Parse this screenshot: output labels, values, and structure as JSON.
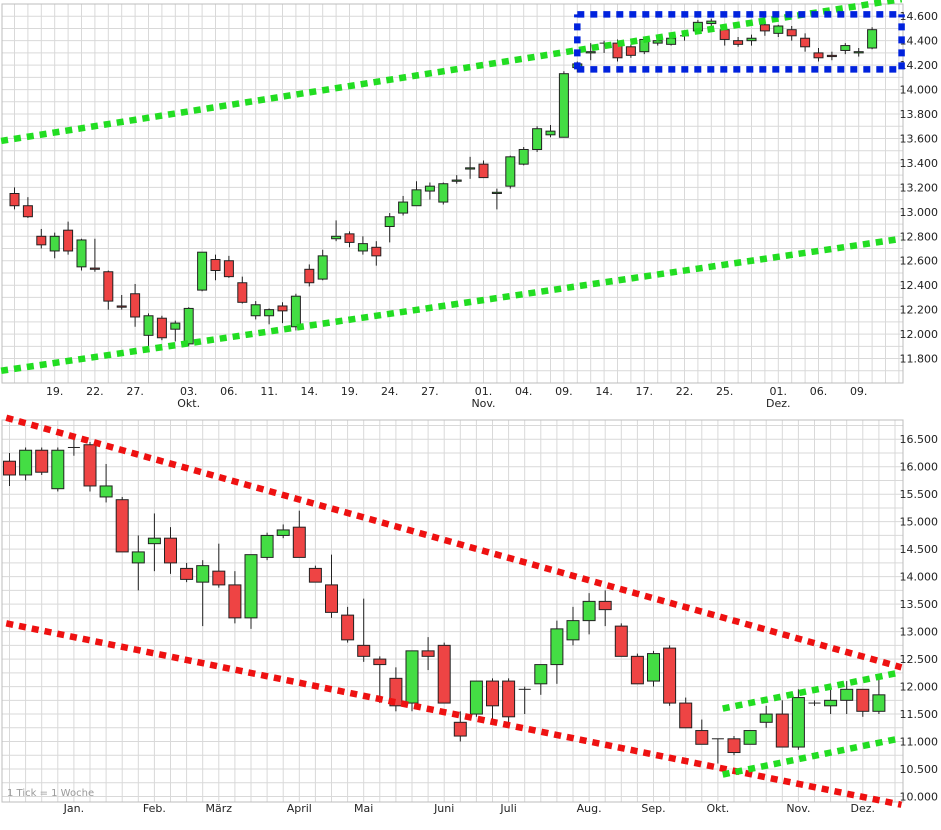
{
  "chart_data": [
    {
      "type": "candlestick",
      "title": "",
      "interval": "daily",
      "ylim": [
        11600,
        14700
      ],
      "y_ticks": [
        11800,
        12000,
        12200,
        12400,
        12600,
        12800,
        13000,
        13200,
        13400,
        13600,
        13800,
        14000,
        14200,
        14400,
        14600
      ],
      "y_tick_labels": [
        "11.800",
        "12.000",
        "12.200",
        "12.400",
        "12.600",
        "12.800",
        "13.000",
        "13.200",
        "13.400",
        "13.600",
        "13.800",
        "14.000",
        "14.200",
        "14.400",
        "14.600"
      ],
      "x_ticks": [
        {
          "i": 3,
          "label": "19."
        },
        {
          "i": 6,
          "label": "22."
        },
        {
          "i": 9,
          "label": "27."
        },
        {
          "i": 13,
          "label": "03.",
          "sub": "Okt."
        },
        {
          "i": 16,
          "label": "06."
        },
        {
          "i": 19,
          "label": "11."
        },
        {
          "i": 22,
          "label": "14."
        },
        {
          "i": 25,
          "label": "19."
        },
        {
          "i": 28,
          "label": "24."
        },
        {
          "i": 31,
          "label": "27."
        },
        {
          "i": 35,
          "label": "01.",
          "sub": "Nov."
        },
        {
          "i": 38,
          "label": "04."
        },
        {
          "i": 41,
          "label": "09."
        },
        {
          "i": 44,
          "label": "14."
        },
        {
          "i": 47,
          "label": "17."
        },
        {
          "i": 50,
          "label": "22."
        },
        {
          "i": 53,
          "label": "25."
        },
        {
          "i": 57,
          "label": "01.",
          "sub": "Dez."
        },
        {
          "i": 60,
          "label": "06."
        },
        {
          "i": 63,
          "label": "09."
        }
      ],
      "candles": [
        {
          "o": 13150,
          "h": 13200,
          "l": 13020,
          "c": 13050
        },
        {
          "o": 13050,
          "h": 13120,
          "l": 12950,
          "c": 12960
        },
        {
          "o": 12800,
          "h": 12860,
          "l": 12700,
          "c": 12730
        },
        {
          "o": 12680,
          "h": 12830,
          "l": 12620,
          "c": 12800
        },
        {
          "o": 12850,
          "h": 12920,
          "l": 12650,
          "c": 12680
        },
        {
          "o": 12550,
          "h": 12780,
          "l": 12520,
          "c": 12770
        },
        {
          "o": 12540,
          "h": 12780,
          "l": 12510,
          "c": 12530
        },
        {
          "o": 12510,
          "h": 12520,
          "l": 12200,
          "c": 12270
        },
        {
          "o": 12230,
          "h": 12320,
          "l": 12200,
          "c": 12220
        },
        {
          "o": 12330,
          "h": 12410,
          "l": 12060,
          "c": 12140
        },
        {
          "o": 11990,
          "h": 12170,
          "l": 11880,
          "c": 12150
        },
        {
          "o": 12130,
          "h": 12150,
          "l": 11950,
          "c": 11970
        },
        {
          "o": 12040,
          "h": 12110,
          "l": 11940,
          "c": 12090
        },
        {
          "o": 11920,
          "h": 12220,
          "l": 11900,
          "c": 12210
        },
        {
          "o": 12360,
          "h": 12670,
          "l": 12350,
          "c": 12670
        },
        {
          "o": 12610,
          "h": 12650,
          "l": 12440,
          "c": 12520
        },
        {
          "o": 12600,
          "h": 12640,
          "l": 12460,
          "c": 12470
        },
        {
          "o": 12420,
          "h": 12470,
          "l": 12250,
          "c": 12260
        },
        {
          "o": 12150,
          "h": 12270,
          "l": 12120,
          "c": 12240
        },
        {
          "o": 12150,
          "h": 12210,
          "l": 12080,
          "c": 12200
        },
        {
          "o": 12230,
          "h": 12260,
          "l": 12090,
          "c": 12190
        },
        {
          "o": 12060,
          "h": 12330,
          "l": 12030,
          "c": 12310
        },
        {
          "o": 12530,
          "h": 12570,
          "l": 12390,
          "c": 12420
        },
        {
          "o": 12450,
          "h": 12690,
          "l": 12440,
          "c": 12640
        },
        {
          "o": 12780,
          "h": 12930,
          "l": 12760,
          "c": 12800
        },
        {
          "o": 12820,
          "h": 12840,
          "l": 12710,
          "c": 12750
        },
        {
          "o": 12680,
          "h": 12800,
          "l": 12650,
          "c": 12740
        },
        {
          "o": 12710,
          "h": 12760,
          "l": 12560,
          "c": 12640
        },
        {
          "o": 12880,
          "h": 12990,
          "l": 12750,
          "c": 12960
        },
        {
          "o": 12990,
          "h": 13130,
          "l": 12970,
          "c": 13080
        },
        {
          "o": 13050,
          "h": 13250,
          "l": 13050,
          "c": 13180
        },
        {
          "o": 13170,
          "h": 13240,
          "l": 13100,
          "c": 13210
        },
        {
          "o": 13080,
          "h": 13240,
          "l": 13060,
          "c": 13230
        },
        {
          "o": 13250,
          "h": 13300,
          "l": 13230,
          "c": 13260
        },
        {
          "o": 13350,
          "h": 13450,
          "l": 13270,
          "c": 13360
        },
        {
          "o": 13390,
          "h": 13420,
          "l": 13280,
          "c": 13280
        },
        {
          "o": 13150,
          "h": 13190,
          "l": 13020,
          "c": 13160
        },
        {
          "o": 13210,
          "h": 13460,
          "l": 13190,
          "c": 13450
        },
        {
          "o": 13390,
          "h": 13530,
          "l": 13380,
          "c": 13510
        },
        {
          "o": 13510,
          "h": 13700,
          "l": 13490,
          "c": 13680
        },
        {
          "o": 13630,
          "h": 13710,
          "l": 13610,
          "c": 13660
        },
        {
          "o": 13610,
          "h": 14150,
          "l": 13610,
          "c": 14130
        },
        {
          "o": 14180,
          "h": 14230,
          "l": 14140,
          "c": 14210
        },
        {
          "o": 14300,
          "h": 14380,
          "l": 14240,
          "c": 14310
        },
        {
          "o": 14380,
          "h": 14400,
          "l": 14300,
          "c": 14380
        },
        {
          "o": 14380,
          "h": 14410,
          "l": 14230,
          "c": 14260
        },
        {
          "o": 14350,
          "h": 14370,
          "l": 14260,
          "c": 14280
        },
        {
          "o": 14310,
          "h": 14430,
          "l": 14290,
          "c": 14410
        },
        {
          "o": 14380,
          "h": 14450,
          "l": 14360,
          "c": 14400
        },
        {
          "o": 14370,
          "h": 14440,
          "l": 14360,
          "c": 14420
        },
        {
          "o": 14440,
          "h": 14460,
          "l": 14400,
          "c": 14440
        },
        {
          "o": 14480,
          "h": 14570,
          "l": 14470,
          "c": 14550
        },
        {
          "o": 14540,
          "h": 14580,
          "l": 14520,
          "c": 14560
        },
        {
          "o": 14490,
          "h": 14520,
          "l": 14360,
          "c": 14410
        },
        {
          "o": 14400,
          "h": 14430,
          "l": 14350,
          "c": 14370
        },
        {
          "o": 14400,
          "h": 14450,
          "l": 14360,
          "c": 14420
        },
        {
          "o": 14530,
          "h": 14570,
          "l": 14440,
          "c": 14480
        },
        {
          "o": 14460,
          "h": 14530,
          "l": 14430,
          "c": 14520
        },
        {
          "o": 14490,
          "h": 14520,
          "l": 14400,
          "c": 14440
        },
        {
          "o": 14420,
          "h": 14460,
          "l": 14310,
          "c": 14350
        },
        {
          "o": 14300,
          "h": 14340,
          "l": 14230,
          "c": 14260
        },
        {
          "o": 14280,
          "h": 14310,
          "l": 14240,
          "c": 14270
        },
        {
          "o": 14320,
          "h": 14380,
          "l": 14290,
          "c": 14360
        },
        {
          "o": 14300,
          "h": 14340,
          "l": 14270,
          "c": 14310
        },
        {
          "o": 14340,
          "h": 14510,
          "l": 14330,
          "c": 14490
        }
      ],
      "trendlines": [
        {
          "color": "#22dd22",
          "start": {
            "i": -1.0,
            "v": 13580
          },
          "end": {
            "i": 66.2,
            "v": 14740
          }
        },
        {
          "color": "#22dd22",
          "start": {
            "i": -1.0,
            "v": 11700
          },
          "end": {
            "i": 66.2,
            "v": 12780
          }
        },
        {
          "color": "#0022dd",
          "start": {
            "i": 42.0,
            "v": 14615
          },
          "end": {
            "i": 66.2,
            "v": 14615
          }
        },
        {
          "color": "#0022dd",
          "start": {
            "i": 42.0,
            "v": 14165
          },
          "end": {
            "i": 66.2,
            "v": 14165
          }
        },
        {
          "color": "#0022dd",
          "start": {
            "i": 42.0,
            "v": 14165
          },
          "end": {
            "i": 42.0,
            "v": 14615
          }
        },
        {
          "color": "#0022dd",
          "start": {
            "i": 66.2,
            "v": 14165
          },
          "end": {
            "i": 66.2,
            "v": 14615
          }
        }
      ]
    },
    {
      "type": "candlestick",
      "title": "",
      "interval": "weekly",
      "ylim": [
        9900,
        16850
      ],
      "y_ticks": [
        10000,
        10500,
        11000,
        11500,
        12000,
        12500,
        13000,
        13500,
        14000,
        14500,
        15000,
        15500,
        16000,
        16500
      ],
      "y_tick_labels": [
        "10.000",
        "10.500",
        "11.000",
        "11.500",
        "12.000",
        "12.500",
        "13.000",
        "13.500",
        "14.000",
        "14.500",
        "15.000",
        "15.500",
        "16.000",
        "16.500"
      ],
      "x_ticks": [
        {
          "i": 4,
          "label": "Jan."
        },
        {
          "i": 9,
          "label": "Feb."
        },
        {
          "i": 13,
          "label": "März"
        },
        {
          "i": 18,
          "label": "April"
        },
        {
          "i": 22,
          "label": "Mai"
        },
        {
          "i": 27,
          "label": "Juni"
        },
        {
          "i": 31,
          "label": "Juli"
        },
        {
          "i": 36,
          "label": "Aug."
        },
        {
          "i": 40,
          "label": "Sep."
        },
        {
          "i": 44,
          "label": "Okt."
        },
        {
          "i": 49,
          "label": "Nov."
        },
        {
          "i": 53,
          "label": "Dez."
        }
      ],
      "candles": [
        {
          "o": 16100,
          "h": 16250,
          "l": 15650,
          "c": 15850
        },
        {
          "o": 15850,
          "h": 16350,
          "l": 15750,
          "c": 16300
        },
        {
          "o": 16300,
          "h": 16350,
          "l": 15850,
          "c": 15900
        },
        {
          "o": 15600,
          "h": 16350,
          "l": 15550,
          "c": 16300
        },
        {
          "o": 16350,
          "h": 16500,
          "l": 16200,
          "c": 16350
        },
        {
          "o": 16400,
          "h": 16450,
          "l": 15550,
          "c": 15650
        },
        {
          "o": 15450,
          "h": 16050,
          "l": 15350,
          "c": 15650
        },
        {
          "o": 15400,
          "h": 15450,
          "l": 14450,
          "c": 14450
        },
        {
          "o": 14250,
          "h": 14750,
          "l": 13750,
          "c": 14450
        },
        {
          "o": 14600,
          "h": 15150,
          "l": 14100,
          "c": 14700
        },
        {
          "o": 14700,
          "h": 14900,
          "l": 14050,
          "c": 14250
        },
        {
          "o": 14150,
          "h": 14250,
          "l": 13900,
          "c": 13950
        },
        {
          "o": 13900,
          "h": 14300,
          "l": 13100,
          "c": 14200
        },
        {
          "o": 14100,
          "h": 14600,
          "l": 13800,
          "c": 13850
        },
        {
          "o": 13850,
          "h": 14100,
          "l": 13150,
          "c": 13250
        },
        {
          "o": 13250,
          "h": 14400,
          "l": 13050,
          "c": 14400
        },
        {
          "o": 14350,
          "h": 14800,
          "l": 14300,
          "c": 14750
        },
        {
          "o": 14750,
          "h": 14950,
          "l": 14700,
          "c": 14850
        },
        {
          "o": 14900,
          "h": 15200,
          "l": 14350,
          "c": 14350
        },
        {
          "o": 14150,
          "h": 14200,
          "l": 13900,
          "c": 13900
        },
        {
          "o": 13850,
          "h": 14400,
          "l": 13250,
          "c": 13350
        },
        {
          "o": 13300,
          "h": 13450,
          "l": 12800,
          "c": 12850
        },
        {
          "o": 12750,
          "h": 13600,
          "l": 12450,
          "c": 12550
        },
        {
          "o": 12500,
          "h": 12550,
          "l": 11700,
          "c": 12400
        },
        {
          "o": 12150,
          "h": 12350,
          "l": 11550,
          "c": 11650
        },
        {
          "o": 11700,
          "h": 12650,
          "l": 11550,
          "c": 12650
        },
        {
          "o": 12650,
          "h": 12900,
          "l": 12300,
          "c": 12550
        },
        {
          "o": 12750,
          "h": 12800,
          "l": 11700,
          "c": 11700
        },
        {
          "o": 11350,
          "h": 11550,
          "l": 11000,
          "c": 11100
        },
        {
          "o": 11500,
          "h": 12100,
          "l": 11450,
          "c": 12100
        },
        {
          "o": 12100,
          "h": 12150,
          "l": 11350,
          "c": 11650
        },
        {
          "o": 12100,
          "h": 12150,
          "l": 11350,
          "c": 11450
        },
        {
          "o": 11950,
          "h": 12000,
          "l": 11500,
          "c": 11950
        },
        {
          "o": 12050,
          "h": 12400,
          "l": 11850,
          "c": 12400
        },
        {
          "o": 12400,
          "h": 13200,
          "l": 12050,
          "c": 13050
        },
        {
          "o": 12850,
          "h": 13450,
          "l": 12750,
          "c": 13200
        },
        {
          "o": 13200,
          "h": 13700,
          "l": 12950,
          "c": 13550
        },
        {
          "o": 13550,
          "h": 13750,
          "l": 13100,
          "c": 13400
        },
        {
          "o": 13100,
          "h": 13150,
          "l": 12550,
          "c": 12550
        },
        {
          "o": 12550,
          "h": 12600,
          "l": 12050,
          "c": 12050
        },
        {
          "o": 12100,
          "h": 12650,
          "l": 12000,
          "c": 12600
        },
        {
          "o": 12700,
          "h": 12750,
          "l": 11650,
          "c": 11700
        },
        {
          "o": 11700,
          "h": 11800,
          "l": 11250,
          "c": 11250
        },
        {
          "o": 11200,
          "h": 11400,
          "l": 10950,
          "c": 10950
        },
        {
          "o": 11050,
          "h": 11050,
          "l": 10600,
          "c": 11050
        },
        {
          "o": 11050,
          "h": 11100,
          "l": 10750,
          "c": 10800
        },
        {
          "o": 10950,
          "h": 11200,
          "l": 10950,
          "c": 11200
        },
        {
          "o": 11350,
          "h": 11650,
          "l": 11250,
          "c": 11500
        },
        {
          "o": 11500,
          "h": 11750,
          "l": 10900,
          "c": 10900
        },
        {
          "o": 10900,
          "h": 11950,
          "l": 10850,
          "c": 11800
        },
        {
          "o": 11700,
          "h": 11750,
          "l": 11650,
          "c": 11700
        },
        {
          "o": 11650,
          "h": 11950,
          "l": 11500,
          "c": 11750
        },
        {
          "o": 11750,
          "h": 12100,
          "l": 11500,
          "c": 11950
        },
        {
          "o": 11950,
          "h": 11950,
          "l": 11450,
          "c": 11550
        },
        {
          "o": 11550,
          "h": 12150,
          "l": 11500,
          "c": 11850
        }
      ],
      "trendlines": [
        {
          "color": "#ee1111",
          "start": {
            "i": -0.2,
            "v": 16890
          },
          "end": {
            "i": 55.4,
            "v": 12350
          }
        },
        {
          "color": "#ee1111",
          "start": {
            "i": -0.2,
            "v": 13150
          },
          "end": {
            "i": 55.4,
            "v": 9850
          }
        },
        {
          "color": "#22dd22",
          "start": {
            "i": 44.3,
            "v": 11600
          },
          "end": {
            "i": 55.2,
            "v": 12250
          }
        },
        {
          "color": "#22dd22",
          "start": {
            "i": 44.3,
            "v": 10400
          },
          "end": {
            "i": 55.2,
            "v": 11050
          }
        }
      ]
    }
  ],
  "footnote": "1 Tick = 1 Woche"
}
